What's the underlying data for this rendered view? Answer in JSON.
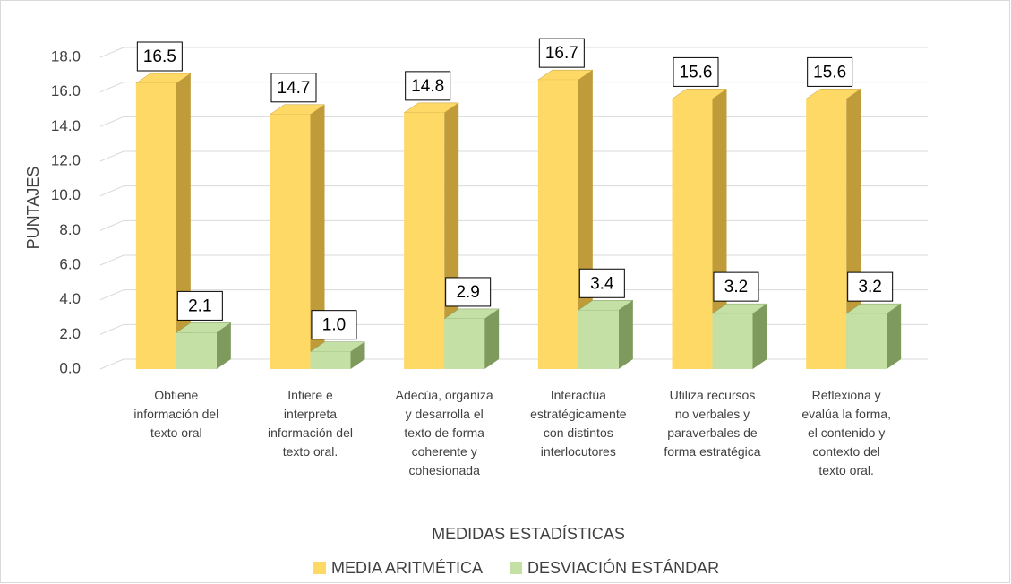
{
  "chart_data": {
    "type": "bar3d",
    "y_label": "PUNTAJES",
    "x_label": "MEDIDAS  ESTADÍSTICAS",
    "categories": [
      "Obtiene\ninformación del\ntexto oral",
      "Infiere e\ninterpreta\ninformación del\ntexto oral.",
      "Adecúa, organiza\ny desarrolla el\ntexto de forma\ncoherente y\ncohesionada",
      "Interactúa\nestratégicamente\ncon distintos\ninterlocutores",
      "Utiliza recursos\nno verbales y\nparaverbales de\nforma estratégica",
      "Reflexiona y\nevalúa la forma,\nel contenido y\ncontexto del\ntexto oral."
    ],
    "series": [
      {
        "name": "MEDIA ARITMÉTICA",
        "color": "#FFD966",
        "side_color": "#BF9B3A",
        "values": [
          16.5,
          14.7,
          14.8,
          16.7,
          15.6,
          15.6
        ]
      },
      {
        "name": "DESVIACIÓN ESTÁNDAR",
        "color": "#C5E0A5",
        "side_color": "#7E9A5C",
        "values": [
          2.1,
          1.0,
          2.9,
          3.4,
          3.2,
          3.2
        ],
        "value_labels": [
          "2.1",
          "1.0",
          "2.9",
          "3.4",
          "3.2",
          "3.2"
        ]
      }
    ],
    "ylim": [
      0,
      18
    ],
    "yticks": [
      {
        "value": 0,
        "label": "0.0"
      },
      {
        "value": 2,
        "label": "2.0"
      },
      {
        "value": 4,
        "label": "4.0"
      },
      {
        "value": 6,
        "label": "6.0"
      },
      {
        "value": 8,
        "label": "8.0"
      },
      {
        "value": 10,
        "label": "10.0"
      },
      {
        "value": 12,
        "label": "12.0"
      },
      {
        "value": 14,
        "label": "14.0"
      },
      {
        "value": 16,
        "label": "16.0"
      },
      {
        "value": 18,
        "label": "18.0"
      }
    ],
    "grid": true
  }
}
